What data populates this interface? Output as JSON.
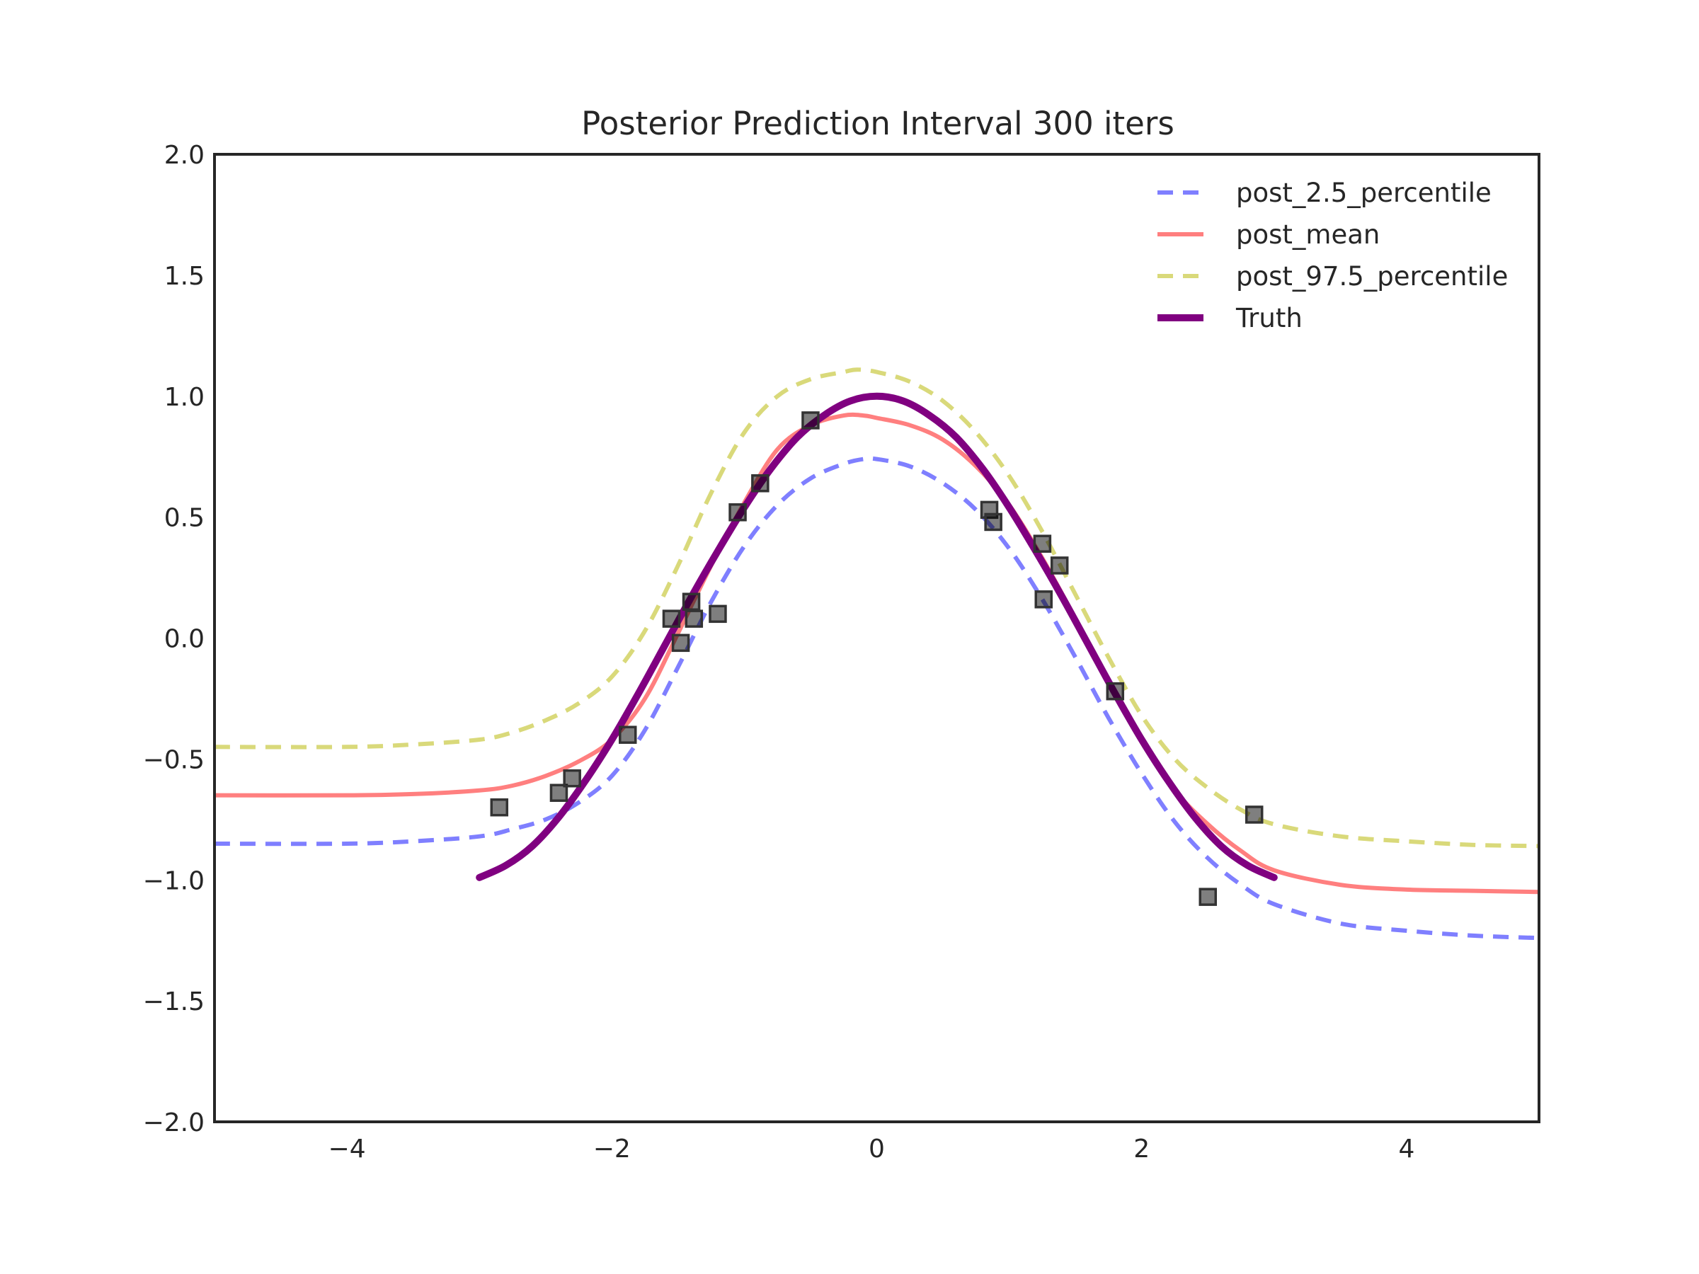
{
  "chart_data": {
    "type": "line",
    "title": "Posterior Prediction Interval 300 iters",
    "xlabel": "",
    "ylabel": "",
    "xlim": [
      -5,
      5
    ],
    "ylim": [
      -2,
      2
    ],
    "grid": false,
    "legend_position": "top-right",
    "x_ticks": [
      {
        "value": -4,
        "label": "−4"
      },
      {
        "value": -2,
        "label": "−2"
      },
      {
        "value": 0,
        "label": "0"
      },
      {
        "value": 2,
        "label": "2"
      },
      {
        "value": 4,
        "label": "4"
      }
    ],
    "y_ticks": [
      {
        "value": 2.0,
        "label": "2.0"
      },
      {
        "value": 1.5,
        "label": "1.5"
      },
      {
        "value": 1.0,
        "label": "1.0"
      },
      {
        "value": 0.5,
        "label": "0.5"
      },
      {
        "value": 0.0,
        "label": "0.0"
      },
      {
        "value": -0.5,
        "label": "−0.5"
      },
      {
        "value": -1.0,
        "label": "−1.0"
      },
      {
        "value": -1.5,
        "label": "−1.5"
      },
      {
        "value": -2.0,
        "label": "−2.0"
      }
    ],
    "series": [
      {
        "name": "post_2.5_percentile",
        "style": "dashed",
        "color": "#7f7fff",
        "points": [
          [
            -5.0,
            -0.85
          ],
          [
            -4.0,
            -0.85
          ],
          [
            -3.5,
            -0.84
          ],
          [
            -3.0,
            -0.82
          ],
          [
            -2.75,
            -0.79
          ],
          [
            -2.5,
            -0.75
          ],
          [
            -2.25,
            -0.68
          ],
          [
            -2.0,
            -0.57
          ],
          [
            -1.75,
            -0.38
          ],
          [
            -1.5,
            -0.12
          ],
          [
            -1.25,
            0.15
          ],
          [
            -1.0,
            0.38
          ],
          [
            -0.75,
            0.55
          ],
          [
            -0.5,
            0.66
          ],
          [
            -0.25,
            0.72
          ],
          [
            -0.1,
            0.74
          ],
          [
            0.0,
            0.74
          ],
          [
            0.25,
            0.71
          ],
          [
            0.5,
            0.64
          ],
          [
            0.75,
            0.53
          ],
          [
            1.0,
            0.37
          ],
          [
            1.25,
            0.16
          ],
          [
            1.5,
            -0.08
          ],
          [
            1.75,
            -0.33
          ],
          [
            2.0,
            -0.56
          ],
          [
            2.25,
            -0.76
          ],
          [
            2.5,
            -0.91
          ],
          [
            2.75,
            -1.02
          ],
          [
            3.0,
            -1.1
          ],
          [
            3.5,
            -1.18
          ],
          [
            4.0,
            -1.21
          ],
          [
            4.5,
            -1.23
          ],
          [
            5.0,
            -1.24
          ]
        ]
      },
      {
        "name": "post_mean",
        "style": "solid",
        "color": "#ff7f7f",
        "points": [
          [
            -5.0,
            -0.65
          ],
          [
            -4.0,
            -0.65
          ],
          [
            -3.5,
            -0.645
          ],
          [
            -3.0,
            -0.63
          ],
          [
            -2.75,
            -0.61
          ],
          [
            -2.5,
            -0.57
          ],
          [
            -2.25,
            -0.51
          ],
          [
            -2.0,
            -0.42
          ],
          [
            -1.75,
            -0.25
          ],
          [
            -1.5,
            0.02
          ],
          [
            -1.25,
            0.3
          ],
          [
            -1.0,
            0.56
          ],
          [
            -0.75,
            0.78
          ],
          [
            -0.5,
            0.88
          ],
          [
            -0.25,
            0.92
          ],
          [
            -0.1,
            0.92
          ],
          [
            0.0,
            0.91
          ],
          [
            0.25,
            0.88
          ],
          [
            0.5,
            0.82
          ],
          [
            0.75,
            0.71
          ],
          [
            1.0,
            0.55
          ],
          [
            1.25,
            0.33
          ],
          [
            1.5,
            0.08
          ],
          [
            1.75,
            -0.18
          ],
          [
            2.0,
            -0.43
          ],
          [
            2.25,
            -0.63
          ],
          [
            2.5,
            -0.77
          ],
          [
            2.75,
            -0.88
          ],
          [
            3.0,
            -0.96
          ],
          [
            3.5,
            -1.02
          ],
          [
            4.0,
            -1.04
          ],
          [
            4.5,
            -1.045
          ],
          [
            5.0,
            -1.05
          ]
        ]
      },
      {
        "name": "post_97.5_percentile",
        "style": "dashed",
        "color": "#d9d97a",
        "points": [
          [
            -5.0,
            -0.45
          ],
          [
            -4.0,
            -0.45
          ],
          [
            -3.5,
            -0.44
          ],
          [
            -3.0,
            -0.42
          ],
          [
            -2.75,
            -0.39
          ],
          [
            -2.5,
            -0.34
          ],
          [
            -2.25,
            -0.27
          ],
          [
            -2.0,
            -0.16
          ],
          [
            -1.75,
            0.03
          ],
          [
            -1.5,
            0.3
          ],
          [
            -1.25,
            0.6
          ],
          [
            -1.0,
            0.85
          ],
          [
            -0.75,
            1.0
          ],
          [
            -0.5,
            1.07
          ],
          [
            -0.25,
            1.1
          ],
          [
            -0.15,
            1.11
          ],
          [
            0.0,
            1.1
          ],
          [
            0.25,
            1.06
          ],
          [
            0.5,
            0.98
          ],
          [
            0.75,
            0.85
          ],
          [
            1.0,
            0.67
          ],
          [
            1.25,
            0.44
          ],
          [
            1.5,
            0.18
          ],
          [
            1.75,
            -0.08
          ],
          [
            2.0,
            -0.32
          ],
          [
            2.25,
            -0.5
          ],
          [
            2.5,
            -0.62
          ],
          [
            2.75,
            -0.71
          ],
          [
            3.0,
            -0.77
          ],
          [
            3.5,
            -0.82
          ],
          [
            4.0,
            -0.84
          ],
          [
            4.5,
            -0.855
          ],
          [
            5.0,
            -0.86
          ]
        ]
      },
      {
        "name": "Truth",
        "style": "solid",
        "color": "#800080",
        "points": [
          [
            -3.0,
            -0.99
          ],
          [
            -2.8,
            -0.94
          ],
          [
            -2.6,
            -0.86
          ],
          [
            -2.4,
            -0.74
          ],
          [
            -2.2,
            -0.59
          ],
          [
            -2.0,
            -0.42
          ],
          [
            -1.8,
            -0.23
          ],
          [
            -1.6,
            -0.03
          ],
          [
            -1.4,
            0.17
          ],
          [
            -1.2,
            0.36
          ],
          [
            -1.0,
            0.54
          ],
          [
            -0.8,
            0.7
          ],
          [
            -0.6,
            0.83
          ],
          [
            -0.4,
            0.92
          ],
          [
            -0.2,
            0.98
          ],
          [
            0.0,
            1.0
          ],
          [
            0.2,
            0.98
          ],
          [
            0.4,
            0.92
          ],
          [
            0.6,
            0.83
          ],
          [
            0.8,
            0.7
          ],
          [
            1.0,
            0.54
          ],
          [
            1.2,
            0.36
          ],
          [
            1.4,
            0.17
          ],
          [
            1.6,
            -0.03
          ],
          [
            1.8,
            -0.23
          ],
          [
            2.0,
            -0.42
          ],
          [
            2.2,
            -0.59
          ],
          [
            2.4,
            -0.74
          ],
          [
            2.6,
            -0.86
          ],
          [
            2.8,
            -0.94
          ],
          [
            3.0,
            -0.99
          ]
        ]
      }
    ],
    "scatter": {
      "marker": "square",
      "color": "#444444",
      "points": [
        [
          -2.85,
          -0.7
        ],
        [
          -2.4,
          -0.64
        ],
        [
          -2.3,
          -0.58
        ],
        [
          -1.88,
          -0.4
        ],
        [
          -1.55,
          0.08
        ],
        [
          -1.48,
          -0.02
        ],
        [
          -1.4,
          0.15
        ],
        [
          -1.38,
          0.08
        ],
        [
          -1.2,
          0.1
        ],
        [
          -1.05,
          0.52
        ],
        [
          -0.88,
          0.64
        ],
        [
          -0.5,
          0.9
        ],
        [
          0.85,
          0.53
        ],
        [
          0.88,
          0.48
        ],
        [
          1.25,
          0.39
        ],
        [
          1.26,
          0.16
        ],
        [
          1.38,
          0.3
        ],
        [
          1.8,
          -0.22
        ],
        [
          2.5,
          -1.07
        ],
        [
          2.85,
          -0.73
        ]
      ]
    }
  }
}
